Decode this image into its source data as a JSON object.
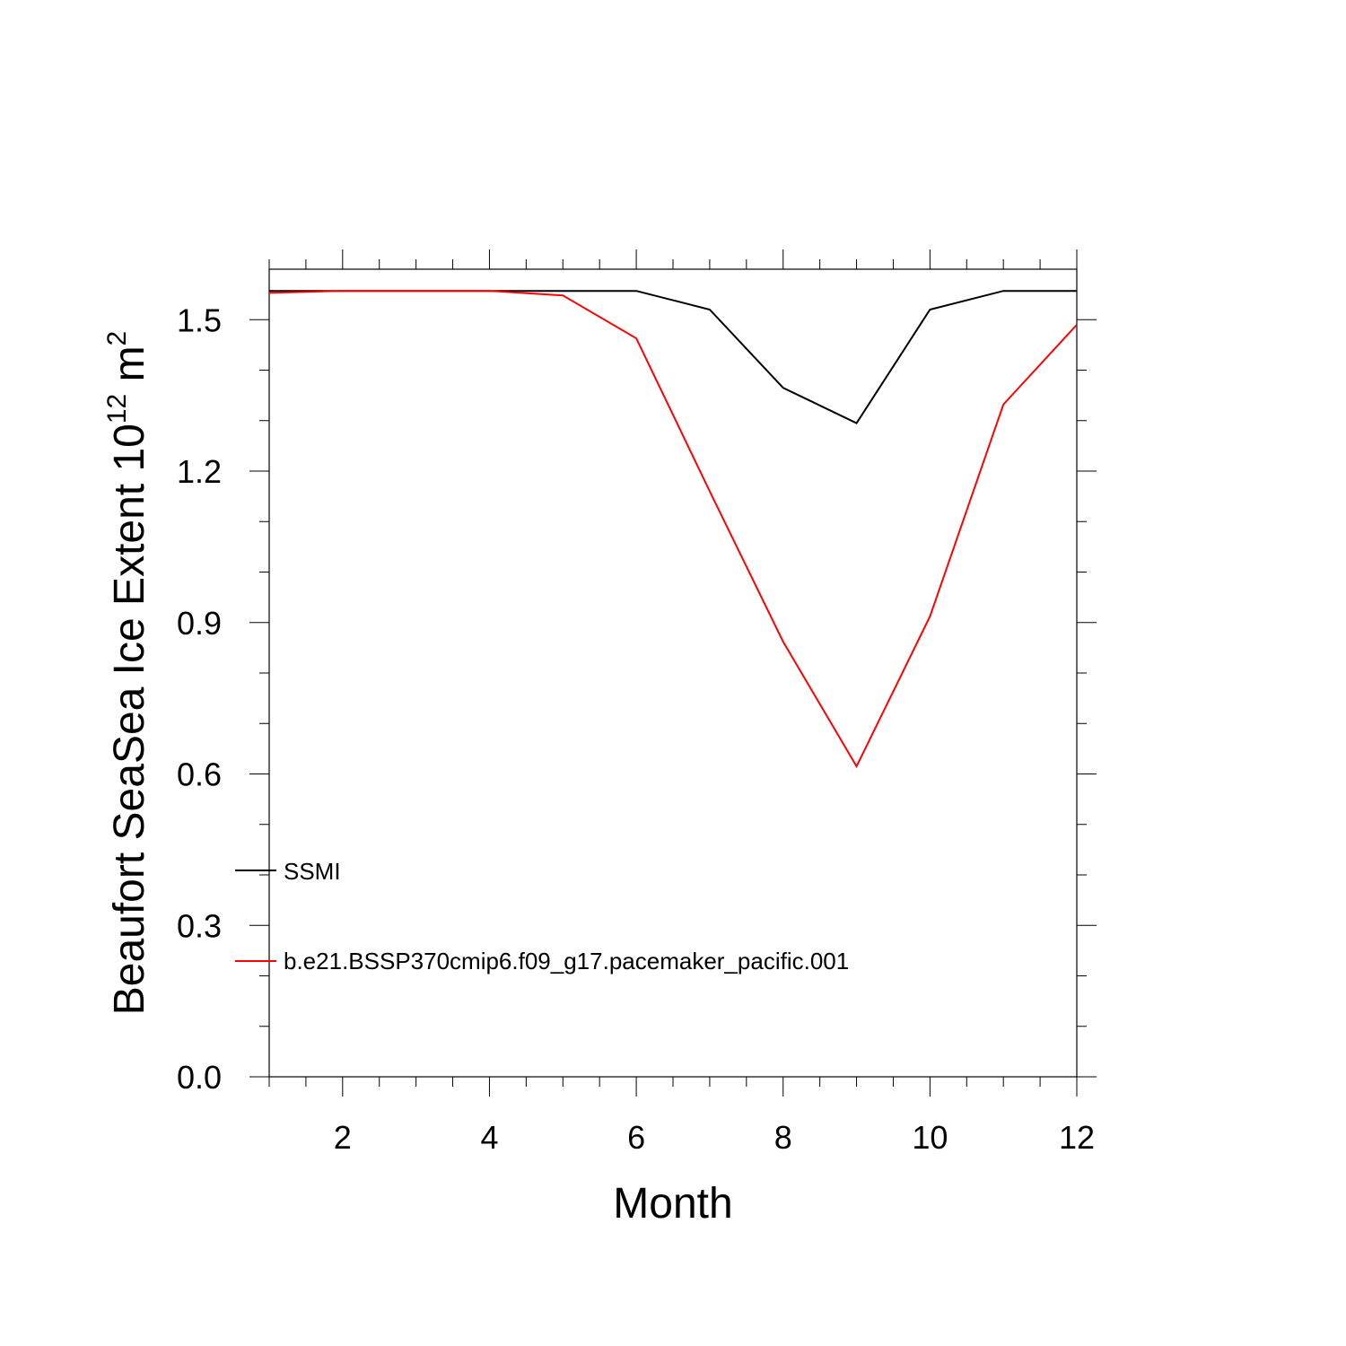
{
  "chart_data": {
    "type": "line",
    "xlabel": "Month",
    "ylabel_main": "Beaufort SeaSea Ice Extent 10",
    "ylabel_sup": "12",
    "ylabel_unit": " m",
    "ylabel_unit_sup": "2",
    "xlim": [
      1,
      12
    ],
    "ylim": [
      0,
      1.6
    ],
    "xticks": [
      2,
      4,
      6,
      8,
      10,
      12
    ],
    "xtick_labels": [
      "2",
      "4",
      "6",
      "8",
      "10",
      "12"
    ],
    "yticks": [
      0,
      0.3,
      0.6,
      0.9,
      1.2,
      1.5
    ],
    "ytick_labels": [
      "0.0",
      "0.3",
      "0.6",
      "0.9",
      "1.2",
      "1.5"
    ],
    "grid": false,
    "legend_position": "lower-left",
    "x": [
      1,
      2,
      3,
      4,
      5,
      6,
      7,
      8,
      9,
      10,
      11,
      12
    ],
    "series": [
      {
        "name": "SSMI",
        "color": "#000000",
        "values": [
          1.557,
          1.557,
          1.557,
          1.557,
          1.557,
          1.557,
          1.52,
          1.365,
          1.295,
          1.52,
          1.557,
          1.557
        ]
      },
      {
        "name": "b.e21.BSSP370cmip6.f09_g17.pacemaker_pacific.001",
        "color": "#ff0000",
        "values": [
          1.553,
          1.557,
          1.557,
          1.557,
          1.548,
          1.463,
          1.16,
          0.862,
          0.615,
          0.912,
          1.332,
          1.49
        ]
      }
    ]
  }
}
